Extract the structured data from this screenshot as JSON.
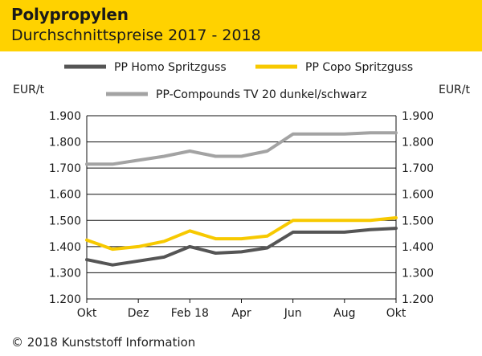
{
  "header": {
    "title": "Polypropylen",
    "subtitle": "Durchschnittspreise 2017 - 2018"
  },
  "footer": {
    "copyright": "© 2018 Kunststoff Information"
  },
  "colors": {
    "header_bg": "#ffd200",
    "homo": "#555555",
    "copo": "#f7c900",
    "compounds": "#a3a3a3",
    "grid": "#111111"
  },
  "chart_data": {
    "type": "line",
    "title": "Polypropylen",
    "subtitle": "Durchschnittspreise 2017 - 2018",
    "ylabel_left": "EUR/t",
    "ylabel_right": "EUR/t",
    "ylim": [
      1200,
      1900
    ],
    "yticks": [
      1900,
      1800,
      1700,
      1600,
      1500,
      1400,
      1300,
      1200
    ],
    "ytick_labels": [
      "1.900",
      "1.800",
      "1.700",
      "1.600",
      "1.500",
      "1.400",
      "1.300",
      "1.200"
    ],
    "x": [
      0,
      1,
      2,
      3,
      4,
      5,
      6,
      7,
      8,
      9,
      10,
      11,
      12
    ],
    "xticks": [
      0,
      2,
      4,
      6,
      8,
      10,
      12
    ],
    "xtick_labels": [
      "Okt",
      "Dez",
      "Feb 18",
      "Apr",
      "Jun",
      "Aug",
      "Okt"
    ],
    "grid": "horizontal",
    "legend": "top",
    "series": [
      {
        "key": "homo",
        "name": "PP Homo Spritzguss",
        "values": [
          1350,
          1330,
          1345,
          1360,
          1400,
          1375,
          1380,
          1395,
          1455,
          1455,
          1455,
          1465,
          1470
        ]
      },
      {
        "key": "copo",
        "name": "PP Copo Spritzguss",
        "values": [
          1425,
          1390,
          1400,
          1420,
          1460,
          1430,
          1430,
          1440,
          1500,
          1500,
          1500,
          1500,
          1510
        ]
      },
      {
        "key": "compounds",
        "name": "PP-Compounds TV 20 dunkel/schwarz",
        "values": [
          1715,
          1715,
          1730,
          1745,
          1765,
          1745,
          1745,
          1765,
          1830,
          1830,
          1830,
          1835,
          1835
        ]
      }
    ]
  }
}
